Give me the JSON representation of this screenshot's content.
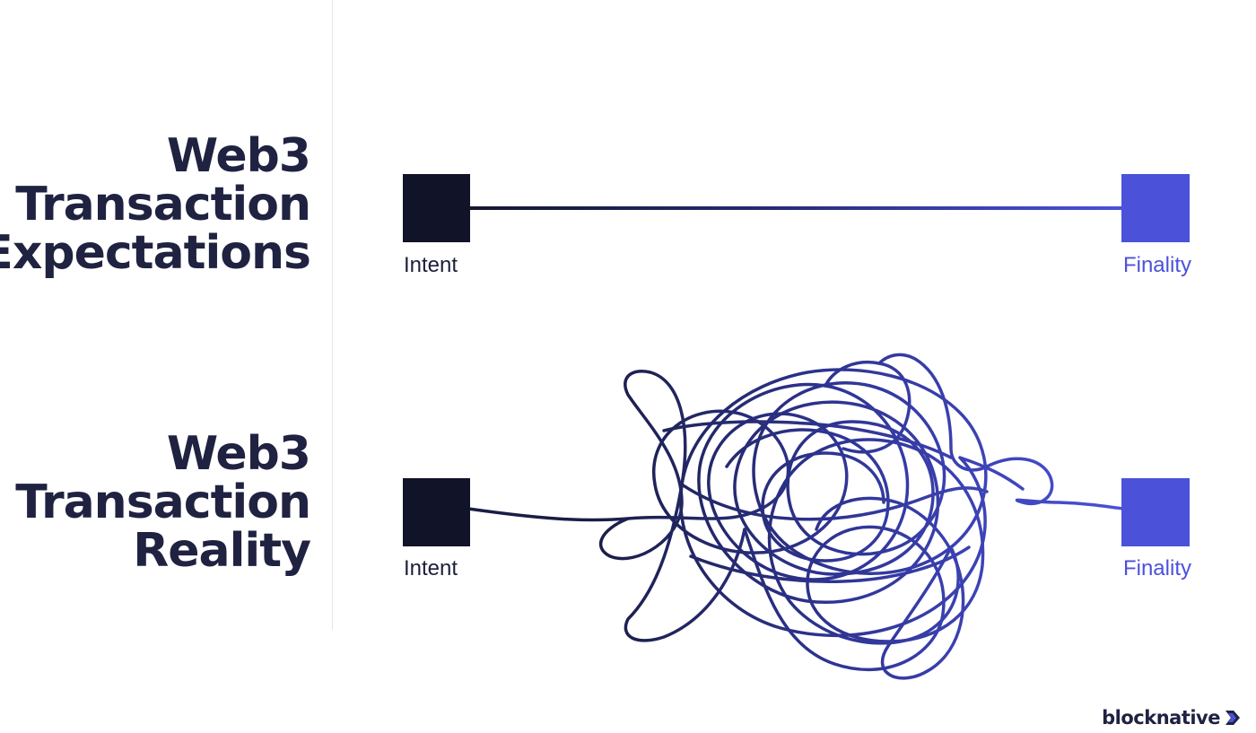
{
  "headings": {
    "expectations": [
      "Web3",
      "Transaction",
      "Expectations"
    ],
    "reality": [
      "Web3",
      "Transaction",
      "Reality"
    ]
  },
  "rows": {
    "expectations": {
      "start_label": "Intent",
      "end_label": "Finality"
    },
    "reality": {
      "start_label": "Intent",
      "end_label": "Finality"
    }
  },
  "colors": {
    "heading": "#1f2240",
    "intent_node": "#111428",
    "finality_node": "#4b52d9",
    "gradient_start": "#14172e",
    "gradient_end": "#4b52d9"
  },
  "logo": {
    "text": "blocknative",
    "icon": "blocknative-chevron-icon"
  }
}
